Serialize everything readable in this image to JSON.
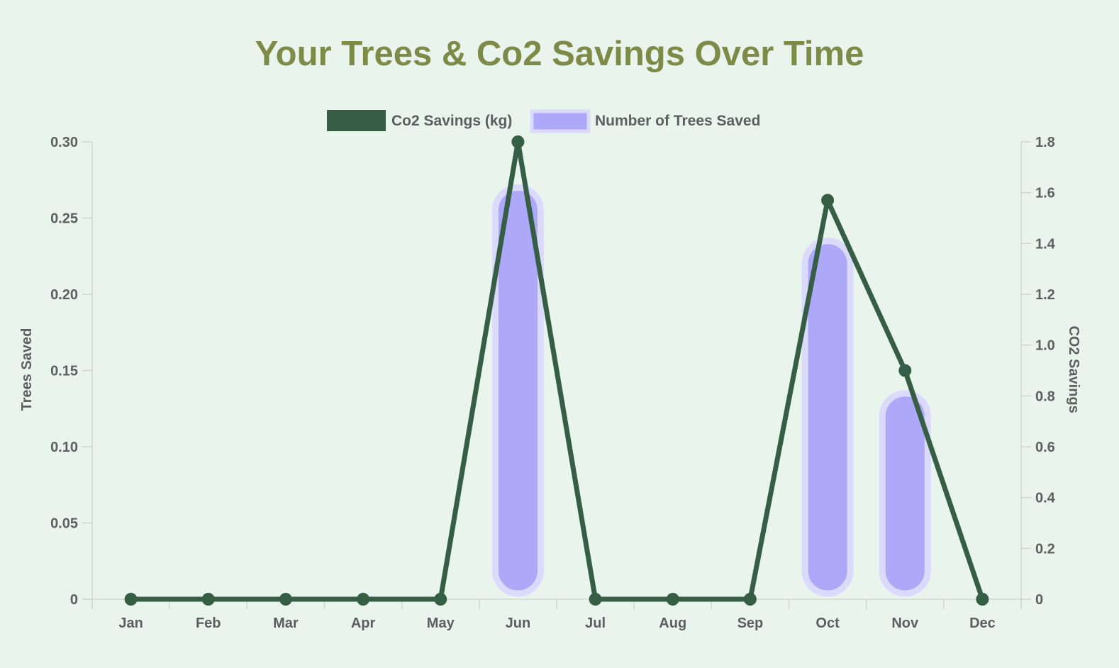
{
  "chart_data": {
    "type": "bar",
    "title": "Your Trees & Co2 Savings Over Time",
    "categories": [
      "Jan",
      "Feb",
      "Mar",
      "Apr",
      "May",
      "Jun",
      "Jul",
      "Aug",
      "Sep",
      "Oct",
      "Nov",
      "Dec"
    ],
    "series": [
      {
        "name": "Co2 Savings (kg)",
        "type": "line",
        "axis": "right",
        "color": "#355e45",
        "values": [
          0,
          0,
          0,
          0,
          0,
          1.8,
          0,
          0,
          0,
          1.57,
          0.9,
          0
        ]
      },
      {
        "name": "Number of Trees Saved",
        "type": "bar",
        "axis": "left",
        "color": "#ada8f8",
        "border_color": "#dcdafc",
        "values": [
          0,
          0,
          0,
          0,
          0,
          0.27,
          0,
          0,
          0,
          0.235,
          0.135,
          0
        ]
      }
    ],
    "y_left": {
      "label": "Trees Saved",
      "ylim": [
        0,
        0.3
      ],
      "ticks": [
        "0",
        "0.05",
        "0.10",
        "0.15",
        "0.20",
        "0.25",
        "0.30"
      ]
    },
    "y_right": {
      "label": "CO2 Savings",
      "ylim": [
        0,
        1.8
      ],
      "ticks": [
        "0",
        "0.2",
        "0.4",
        "0.6",
        "0.8",
        "1.0",
        "1.2",
        "1.4",
        "1.6",
        "1.8"
      ]
    },
    "legend_position": "top-center",
    "grid": false
  }
}
